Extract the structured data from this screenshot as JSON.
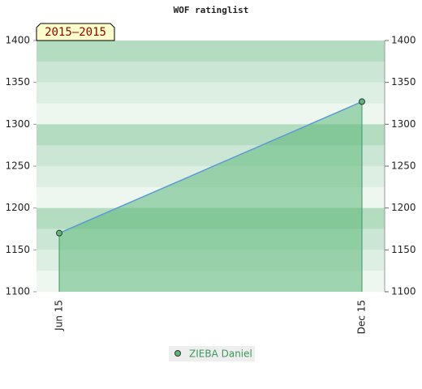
{
  "chart_data": {
    "type": "area-line",
    "title": "WOF ratinglist",
    "badge": "2015–2015",
    "categories": [
      "Jun 15",
      "Dec 15"
    ],
    "series": [
      {
        "name": "ZIEBA Daniel",
        "color": "#5b9bd5",
        "values": [
          1170,
          1327
        ]
      }
    ],
    "ylim": [
      1100,
      1400
    ],
    "yticks": [
      1100,
      1150,
      1200,
      1250,
      1300,
      1350,
      1400
    ],
    "y2lim": [
      1100,
      1400
    ],
    "y2ticks": [
      1100,
      1150,
      1200,
      1250,
      1300,
      1350,
      1400
    ]
  }
}
